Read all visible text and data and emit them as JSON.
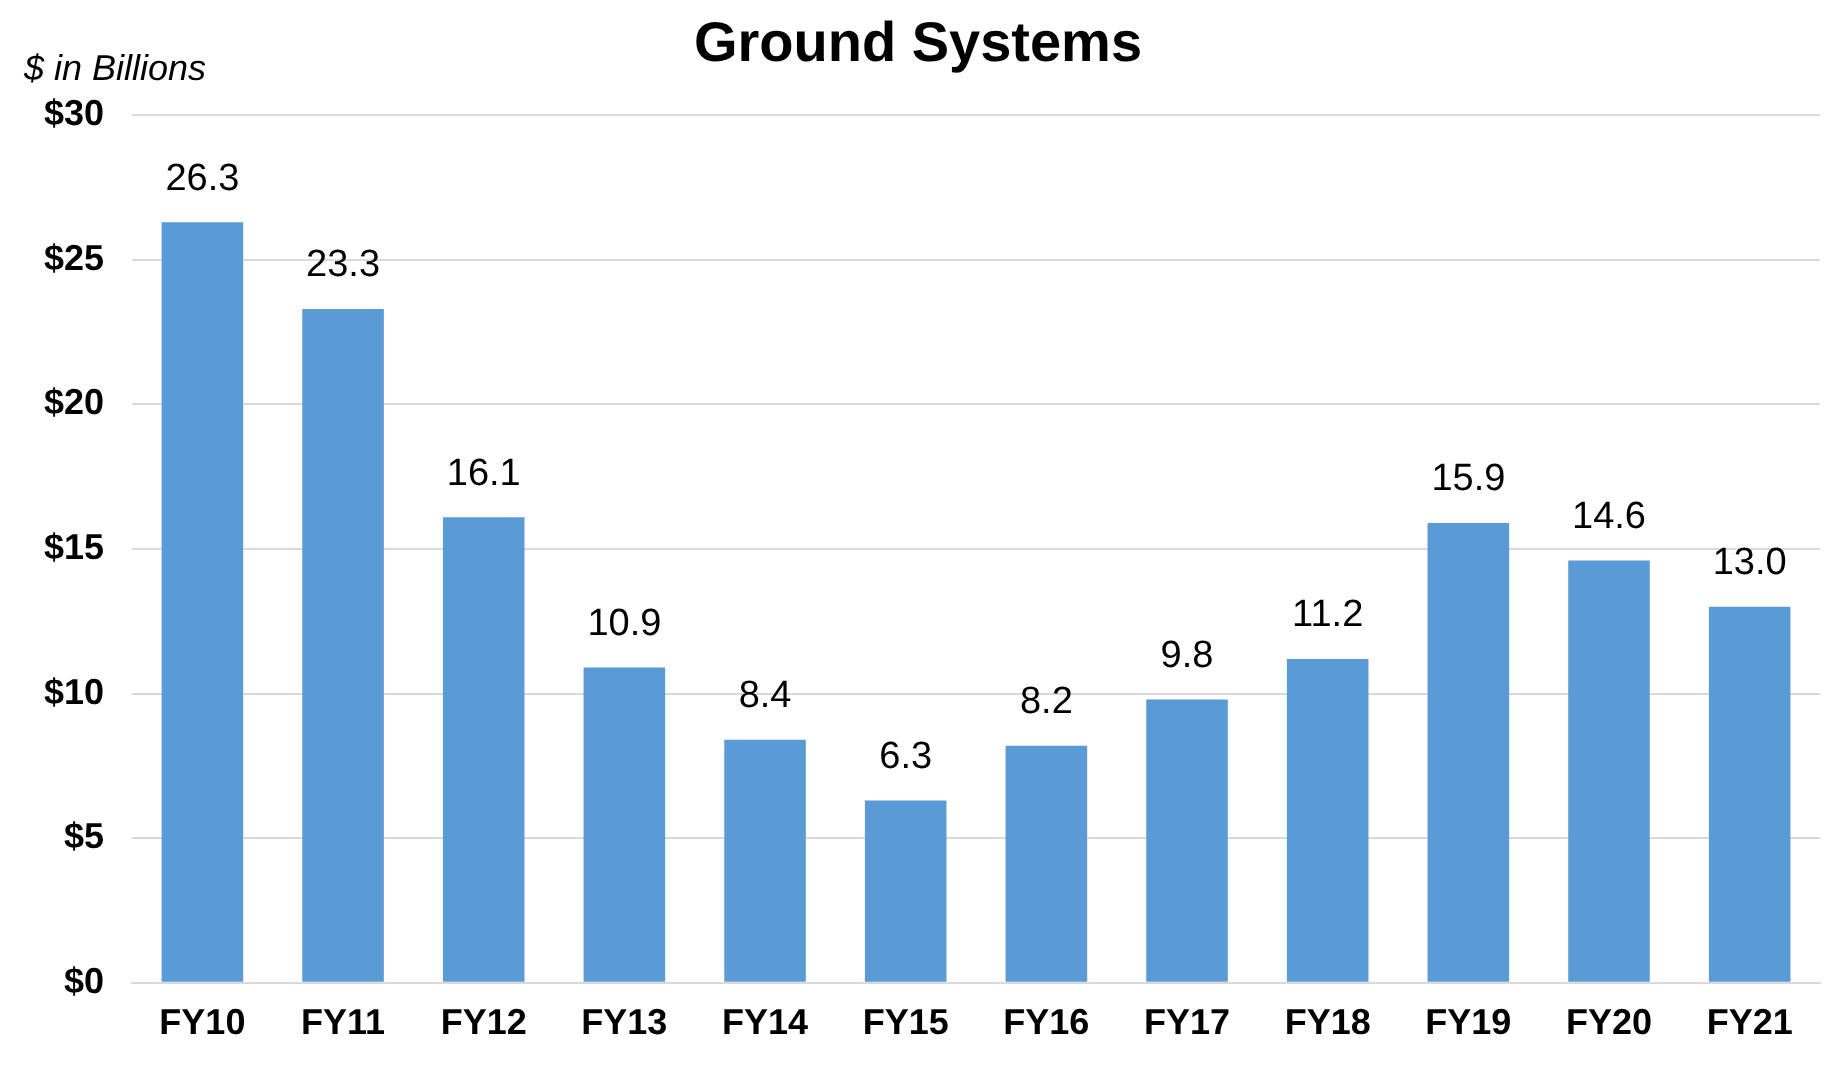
{
  "chart_data": {
    "type": "bar",
    "title": "Ground Systems",
    "ylabel": "$ in Billions",
    "categories": [
      "FY10",
      "FY11",
      "FY12",
      "FY13",
      "FY14",
      "FY15",
      "FY16",
      "FY17",
      "FY18",
      "FY19",
      "FY20",
      "FY21"
    ],
    "values": [
      26.3,
      23.3,
      16.1,
      10.9,
      8.4,
      6.3,
      8.2,
      9.8,
      11.2,
      15.9,
      14.6,
      13.0
    ],
    "value_labels": [
      "26.3",
      "23.3",
      "16.1",
      "10.9",
      "8.4",
      "6.3",
      "8.2",
      "9.8",
      "11.2",
      "15.9",
      "14.6",
      "13.0"
    ],
    "color": "#5b9bd5",
    "ylim": [
      0,
      30
    ],
    "yticks": [
      {
        "value": 0,
        "label": "$0"
      },
      {
        "value": 5,
        "label": "$5"
      },
      {
        "value": 10,
        "label": "$10"
      },
      {
        "value": 15,
        "label": "$15"
      },
      {
        "value": 20,
        "label": "$20"
      },
      {
        "value": 25,
        "label": "$25"
      },
      {
        "value": 30,
        "label": "$30"
      }
    ],
    "grid": "y",
    "legend": false
  }
}
